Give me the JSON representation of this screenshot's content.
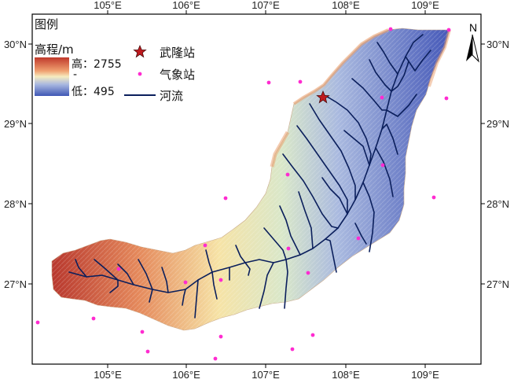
{
  "map": {
    "x_ticks": [
      "105°E",
      "106°E",
      "107°E",
      "108°E",
      "109°E"
    ],
    "y_ticks": [
      "30°N",
      "29°N",
      "28°N",
      "27°N"
    ],
    "north_label": "N"
  },
  "legend": {
    "title": "图例",
    "elevation_label": "高程/m",
    "high_label": "高：2755",
    "low_label": "低：495",
    "station_main_label": "武隆站",
    "stations_label": "气象站",
    "river_label": "河流"
  },
  "colors": {
    "elev_high": "#c0392b",
    "elev_mid": "#f5e6a8",
    "elev_low": "#3f57b5",
    "river": "#0b1f5c",
    "station": "#ff2bd0",
    "main_station": "#c0191e"
  }
}
